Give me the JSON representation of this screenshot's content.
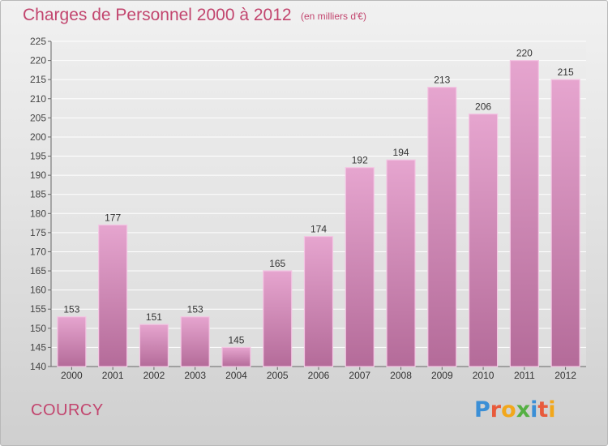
{
  "header": {
    "title": "Charges de Personnel 2000 à 2012",
    "subtitle": "(en milliers d'€)"
  },
  "footer": {
    "commune": "COURCY",
    "logo_text": "Proxiti"
  },
  "colors": {
    "text_accent": "#c2456e",
    "bar_top": "#e6a5cf",
    "bar_bottom": "#b46b99"
  },
  "chart_data": {
    "type": "bar",
    "title": "Charges de Personnel 2000 à 2012",
    "subtitle": "(en milliers d'€)",
    "categories": [
      "2000",
      "2001",
      "2002",
      "2003",
      "2004",
      "2005",
      "2006",
      "2007",
      "2008",
      "2009",
      "2010",
      "2011",
      "2012"
    ],
    "values": [
      153,
      177,
      151,
      153,
      145,
      165,
      174,
      192,
      194,
      213,
      206,
      220,
      215
    ],
    "ylim": [
      140,
      225
    ],
    "yticks": [
      140,
      145,
      150,
      155,
      160,
      165,
      170,
      175,
      180,
      185,
      190,
      195,
      200,
      205,
      210,
      215,
      220,
      225
    ],
    "grid": true,
    "data_labels": true
  }
}
